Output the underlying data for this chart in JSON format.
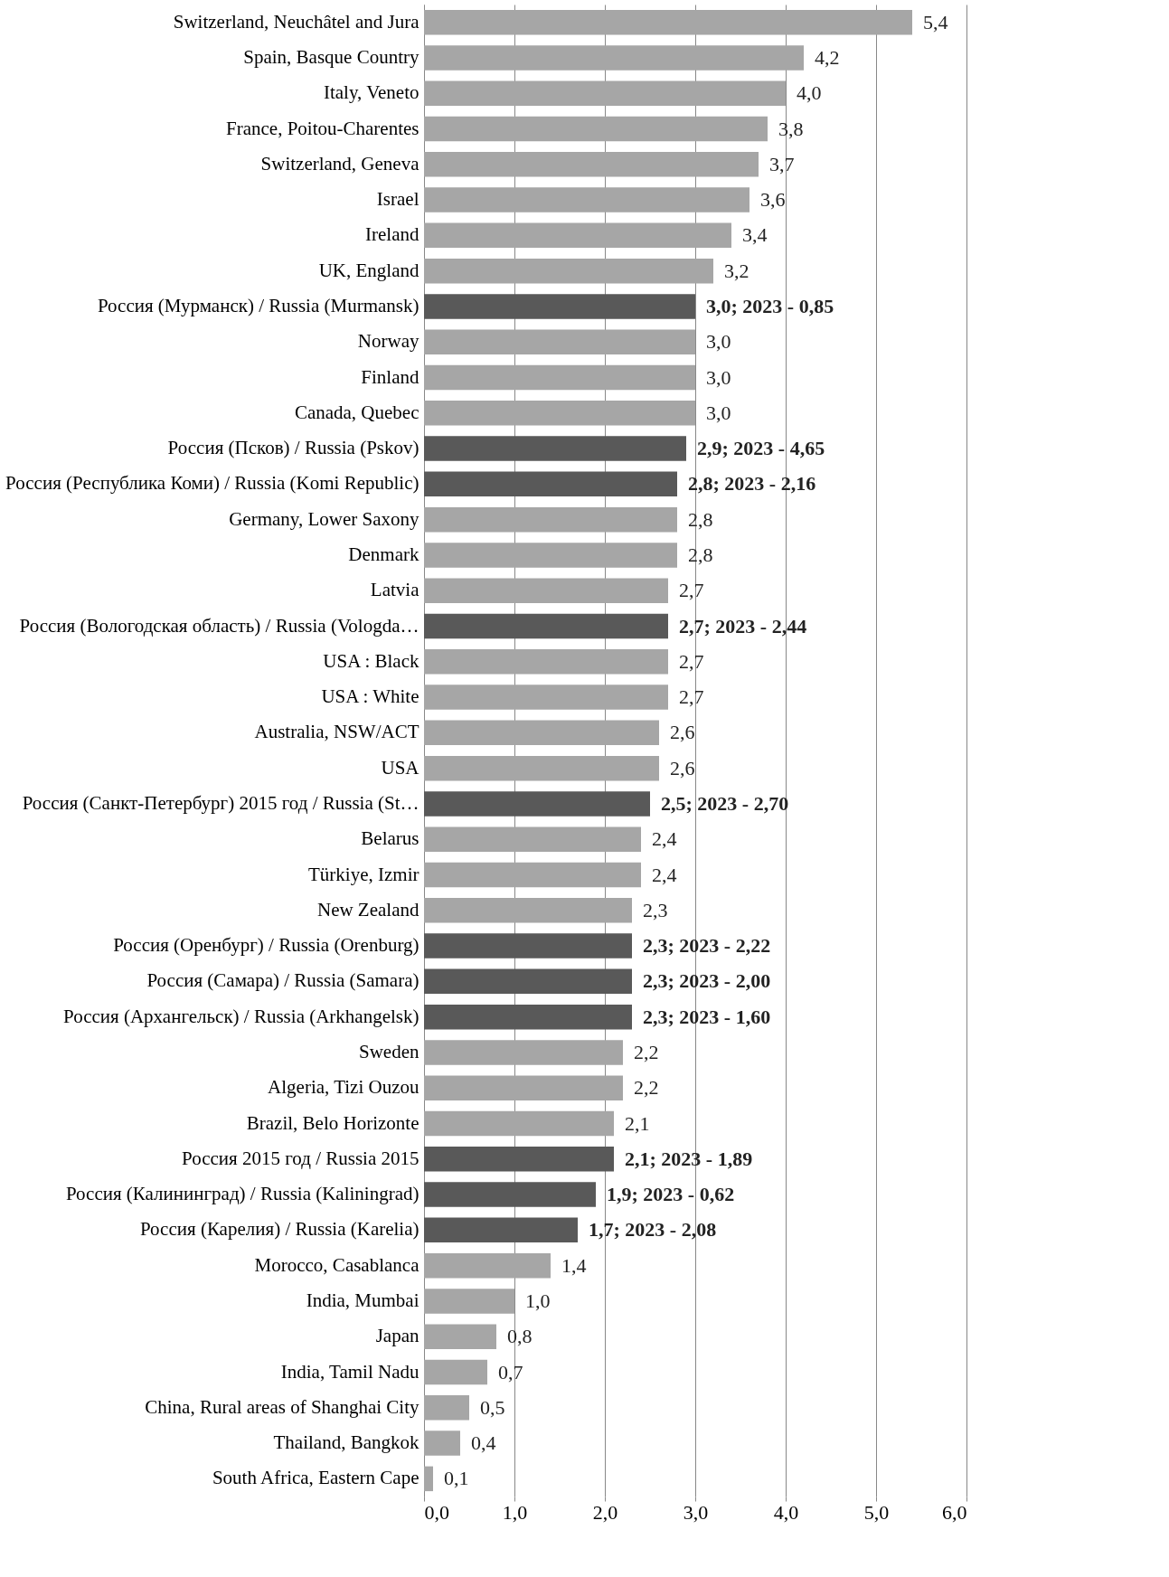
{
  "chart_data": {
    "type": "bar",
    "orientation": "horizontal",
    "categories": [
      "Switzerland, Neuchâtel and Jura",
      "Spain, Basque Country",
      "Italy, Veneto",
      "France, Poitou-Charentes",
      "Switzerland, Geneva",
      "Israel",
      "Ireland",
      "UK, England",
      "Россия (Мурманск) / Russia (Murmansk)",
      "Norway",
      "Finland",
      "Canada, Quebec",
      "Россия (Псков) / Russia (Pskov)",
      "Россия (Республика Коми) / Russia (Komi Republic)",
      "Germany, Lower Saxony",
      "Denmark",
      "Latvia",
      "Россия (Вологодская область) / Russia (Vologda…",
      "USA : Black",
      "USA : White",
      "Australia, NSW/ACT",
      "USA",
      "Россия (Санкт-Петербург) 2015 год / Russia (St…",
      "Belarus",
      "Türkiye, Izmir",
      "New Zealand",
      "Россия (Оренбург) / Russia (Orenburg)",
      "Россия (Самара) / Russia (Samara)",
      "Россия (Архангельск) / Russia (Arkhangelsk)",
      "Sweden",
      "Algeria, Tizi Ouzou",
      "Brazil, Belo Horizonte",
      "Россия 2015 год / Russia 2015",
      "Россия (Калининград) / Russia (Kaliningrad)",
      "Россия (Карелия) / Russia (Karelia)",
      "Morocco, Casablanca",
      "India, Mumbai",
      "Japan",
      "India, Tamil Nadu",
      "China, Rural areas of Shanghai City",
      "Thailand, Bangkok",
      "South Africa, Eastern Cape"
    ],
    "values": [
      5.4,
      4.2,
      4.0,
      3.8,
      3.7,
      3.6,
      3.4,
      3.2,
      3.0,
      3.0,
      3.0,
      3.0,
      2.9,
      2.8,
      2.8,
      2.8,
      2.7,
      2.7,
      2.7,
      2.7,
      2.6,
      2.6,
      2.5,
      2.4,
      2.4,
      2.3,
      2.3,
      2.3,
      2.3,
      2.2,
      2.2,
      2.1,
      2.1,
      1.9,
      1.7,
      1.4,
      1.0,
      0.8,
      0.7,
      0.5,
      0.4,
      0.1
    ],
    "value_labels": [
      "5,4",
      "4,2",
      "4,0",
      "3,8",
      "3,7",
      "3,6",
      "3,4",
      "3,2",
      "3,0; 2023 - 0,85",
      "3,0",
      "3,0",
      "3,0",
      "2,9; 2023 - 4,65",
      "2,8; 2023 - 2,16",
      "2,8",
      "2,8",
      "2,7",
      "2,7; 2023 - 2,44",
      "2,7",
      "2,7",
      "2,6",
      "2,6",
      "2,5; 2023 - 2,70",
      "2,4",
      "2,4",
      "2,3",
      "2,3; 2023 - 2,22",
      "2,3; 2023 - 2,00",
      "2,3; 2023 - 1,60",
      "2,2",
      "2,2",
      "2,1",
      "2,1; 2023 - 1,89",
      "1,9; 2023 - 0,62",
      "1,7; 2023 - 2,08",
      "1,4",
      "1,0",
      "0,8",
      "0,7",
      "0,5",
      "0,4",
      "0,1"
    ],
    "colors": [
      "#a6a6a6",
      "#a6a6a6",
      "#a6a6a6",
      "#a6a6a6",
      "#a6a6a6",
      "#a6a6a6",
      "#a6a6a6",
      "#a6a6a6",
      "#595959",
      "#a6a6a6",
      "#a6a6a6",
      "#a6a6a6",
      "#595959",
      "#595959",
      "#a6a6a6",
      "#a6a6a6",
      "#a6a6a6",
      "#595959",
      "#a6a6a6",
      "#a6a6a6",
      "#a6a6a6",
      "#a6a6a6",
      "#595959",
      "#a6a6a6",
      "#a6a6a6",
      "#a6a6a6",
      "#595959",
      "#595959",
      "#595959",
      "#a6a6a6",
      "#a6a6a6",
      "#a6a6a6",
      "#595959",
      "#595959",
      "#595959",
      "#a6a6a6",
      "#a6a6a6",
      "#a6a6a6",
      "#a6a6a6",
      "#a6a6a6",
      "#a6a6a6",
      "#a6a6a6"
    ],
    "xlim": [
      0,
      6
    ],
    "xticks": [
      {
        "value": 0,
        "label": "0,0"
      },
      {
        "value": 1,
        "label": "1,0"
      },
      {
        "value": 2,
        "label": "2,0"
      },
      {
        "value": 3,
        "label": "3,0"
      },
      {
        "value": 4,
        "label": "4,0"
      },
      {
        "value": 5,
        "label": "5,0"
      },
      {
        "value": 6,
        "label": "6,0"
      }
    ],
    "grid": "x"
  }
}
